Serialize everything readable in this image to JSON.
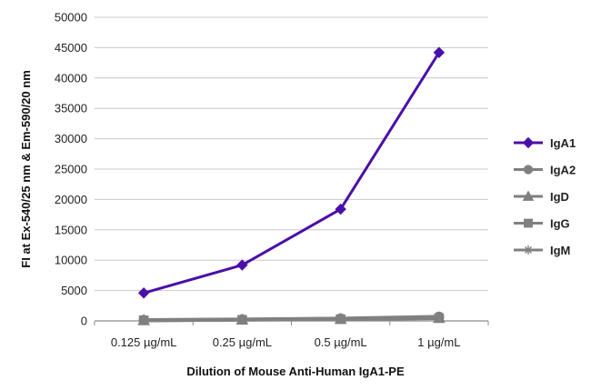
{
  "chart_data": {
    "type": "line",
    "title": "",
    "xlabel": "Dilution of Mouse Anti-Human IgA1-PE",
    "ylabel": "FI at Ex-540/25 nm & Em-590/20 nm",
    "categories": [
      "0.125 µg/mL",
      "0.25 µg/mL",
      "0.5 µg/mL",
      "1 µg/mL"
    ],
    "ylim": [
      0,
      50000
    ],
    "yticks": [
      0,
      5000,
      10000,
      15000,
      20000,
      25000,
      30000,
      35000,
      40000,
      45000,
      50000
    ],
    "grid": true,
    "legend_position": "right",
    "series": [
      {
        "name": "IgA1",
        "values": [
          4600,
          9200,
          18400,
          44200
        ],
        "color": "#4b0fa8",
        "marker": "diamond"
      },
      {
        "name": "IgA2",
        "values": [
          150,
          250,
          400,
          700
        ],
        "color": "#808080",
        "marker": "circle"
      },
      {
        "name": "IgD",
        "values": [
          100,
          200,
          300,
          500
        ],
        "color": "#808080",
        "marker": "triangle"
      },
      {
        "name": "IgG",
        "values": [
          100,
          180,
          280,
          450
        ],
        "color": "#808080",
        "marker": "square"
      },
      {
        "name": "IgM",
        "values": [
          120,
          220,
          350,
          600
        ],
        "color": "#808080",
        "marker": "star"
      }
    ]
  }
}
